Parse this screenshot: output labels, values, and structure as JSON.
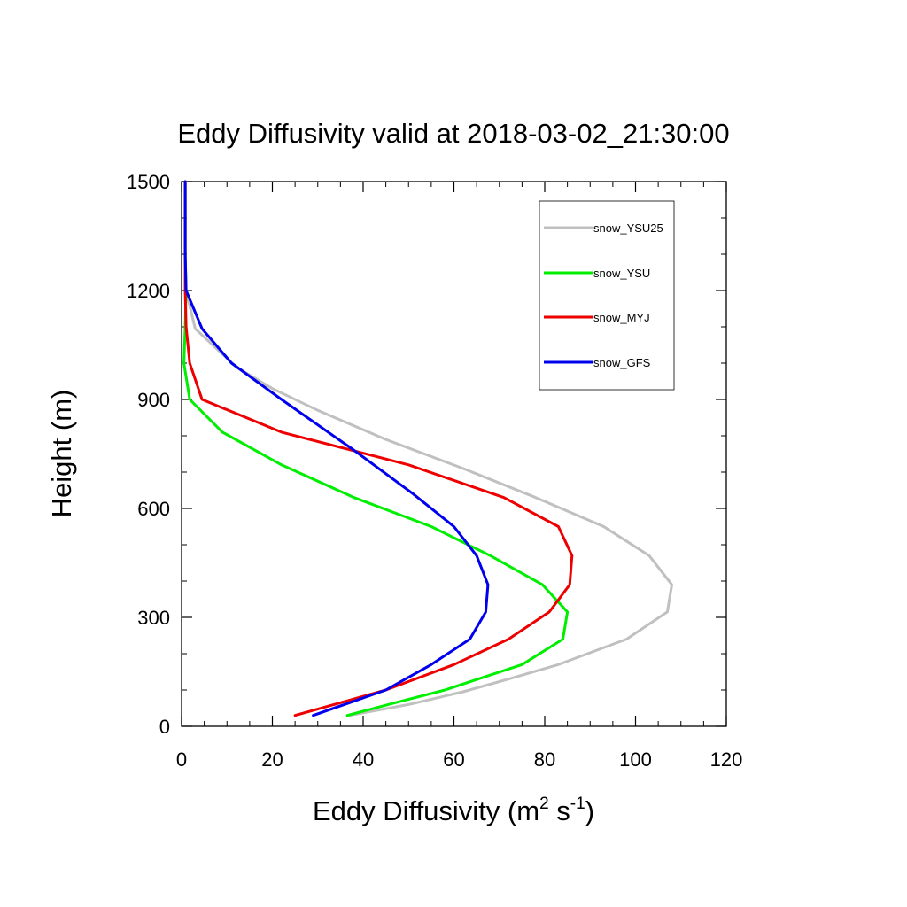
{
  "chart_data": {
    "type": "line",
    "title": "Eddy Diffusivity valid at 2018-03-02_21:30:00",
    "xlabel": {
      "base": "Eddy Diffusivity (m",
      "sup1": "2",
      "mid": " s",
      "sup2": "-1",
      "end": ")"
    },
    "ylabel": "Height (m)",
    "xlim": [
      0,
      120
    ],
    "ylim": [
      0,
      1500
    ],
    "xticks": [
      0,
      20,
      40,
      60,
      80,
      100,
      120
    ],
    "yticks": [
      0,
      300,
      600,
      900,
      1200,
      1500
    ],
    "grid": false,
    "legend_position": "top-right",
    "series": [
      {
        "name": "snow_YSU25",
        "color": "#c0c0c0",
        "x": [
          37,
          50,
          62,
          72,
          83,
          98,
          107,
          108,
          103,
          93,
          78,
          62,
          45,
          30,
          20,
          12,
          3,
          1,
          0.8,
          0.8,
          0.8
        ],
        "y": [
          30,
          60,
          95,
          130,
          170,
          240,
          315,
          390,
          470,
          550,
          630,
          710,
          790,
          870,
          930,
          990,
          1095,
          1200,
          1300,
          1400,
          1500
        ]
      },
      {
        "name": "snow_YSU",
        "color": "#00ee00",
        "x": [
          36.5,
          47,
          58,
          75,
          84,
          85,
          79.5,
          68,
          55,
          38,
          22,
          9,
          1.8,
          0.5,
          0.8,
          1,
          0.8,
          0.8,
          0.8
        ],
        "y": [
          30,
          65,
          100,
          170,
          240,
          315,
          390,
          470,
          550,
          630,
          720,
          810,
          900,
          1000,
          1100,
          1200,
          1300,
          1400,
          1500
        ]
      },
      {
        "name": "snow_MYJ",
        "color": "#ee0000",
        "x": [
          25,
          45,
          60,
          72,
          81,
          85.5,
          86,
          83,
          71,
          50,
          22,
          4.5,
          1.8,
          1,
          0.8,
          0.8,
          0.8,
          0.8
        ],
        "y": [
          30,
          100,
          170,
          240,
          315,
          390,
          470,
          550,
          630,
          720,
          810,
          900,
          1000,
          1100,
          1200,
          1300,
          1400,
          1500
        ]
      },
      {
        "name": "snow_GFS",
        "color": "#0000ee",
        "x": [
          29,
          45,
          55,
          63.5,
          67,
          67.5,
          65,
          60,
          51,
          38,
          22,
          11,
          4.5,
          1,
          0.8,
          0.8,
          0.8
        ],
        "y": [
          30,
          100,
          170,
          240,
          315,
          390,
          470,
          550,
          640,
          760,
          900,
          1000,
          1095,
          1200,
          1300,
          1400,
          1500
        ]
      }
    ]
  }
}
